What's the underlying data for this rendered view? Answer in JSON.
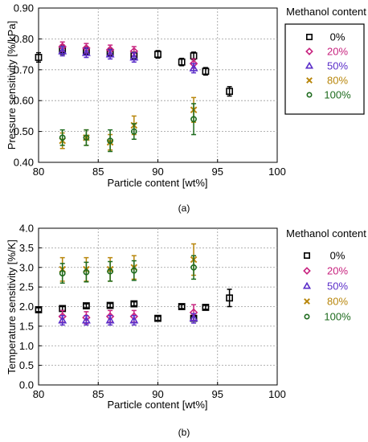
{
  "panels": [
    {
      "label": "(a)",
      "legend_title": "Methanol content",
      "chart_data": {
        "type": "scatter",
        "xlabel": "Particle content [wt%]",
        "ylabel": "Pressure sensitivity [%/kPa]",
        "xlim": [
          80,
          100
        ],
        "ylim": [
          0.4,
          0.9
        ],
        "xticks": [
          80,
          85,
          90,
          95,
          100
        ],
        "yticks": [
          0.4,
          0.5,
          0.6,
          0.7,
          0.8,
          0.9
        ],
        "ytick_labels": [
          "0.40",
          "0.50",
          "0.60",
          "0.70",
          "0.80",
          "0.90"
        ],
        "grid": true,
        "legend_position": "right",
        "series": [
          {
            "name": "0%",
            "color": "#000000",
            "marker": "square",
            "x": [
              80,
              82,
              84,
              86,
              88,
              90,
              92,
              93,
              94,
              96
            ],
            "y": [
              0.74,
              0.765,
              0.76,
              0.755,
              0.745,
              0.75,
              0.725,
              0.745,
              0.695,
              0.63
            ],
            "err": [
              0.015,
              0.015,
              0.012,
              0.012,
              0.012,
              0.012,
              0.012,
              0.012,
              0.012,
              0.015
            ]
          },
          {
            "name": "20%",
            "color": "#c8237f",
            "marker": "diamond",
            "x": [
              82,
              84,
              86,
              88,
              93
            ],
            "y": [
              0.775,
              0.77,
              0.765,
              0.76,
              0.72
            ],
            "err": [
              0.015,
              0.015,
              0.015,
              0.015,
              0.015
            ]
          },
          {
            "name": "50%",
            "color": "#5b2fc9",
            "marker": "triangle",
            "x": [
              82,
              84,
              86,
              88,
              93
            ],
            "y": [
              0.76,
              0.755,
              0.75,
              0.74,
              0.705
            ],
            "err": [
              0.015,
              0.015,
              0.015,
              0.015,
              0.015
            ]
          },
          {
            "name": "80%",
            "color": "#b8860b",
            "marker": "cross",
            "x": [
              82,
              84,
              86,
              88,
              93
            ],
            "y": [
              0.47,
              0.48,
              0.465,
              0.52,
              0.57
            ],
            "err": [
              0.025,
              0.025,
              0.025,
              0.03,
              0.04
            ]
          },
          {
            "name": "100%",
            "color": "#1e6b1e",
            "marker": "circle",
            "x": [
              82,
              84,
              86,
              88,
              93
            ],
            "y": [
              0.48,
              0.48,
              0.47,
              0.5,
              0.54
            ],
            "err": [
              0.025,
              0.025,
              0.035,
              0.025,
              0.05
            ]
          }
        ]
      }
    },
    {
      "label": "(b)",
      "legend_title": "Methanol content",
      "chart_data": {
        "type": "scatter",
        "xlabel": "Particle content [wt%]",
        "ylabel": "Temperature sensitivity [%/K]",
        "xlim": [
          80,
          100
        ],
        "ylim": [
          0.0,
          4.0
        ],
        "xticks": [
          80,
          85,
          90,
          95,
          100
        ],
        "yticks": [
          0.0,
          0.5,
          1.0,
          1.5,
          2.0,
          2.5,
          3.0,
          3.5,
          4.0
        ],
        "ytick_labels": [
          "0.0",
          "0.5",
          "1.0",
          "1.5",
          "2.0",
          "2.5",
          "3.0",
          "3.5",
          "4.0"
        ],
        "grid": true,
        "legend_position": "right",
        "series": [
          {
            "name": "0%",
            "color": "#000000",
            "marker": "square",
            "x": [
              80,
              82,
              84,
              86,
              88,
              90,
              92,
              93,
              94,
              96
            ],
            "y": [
              1.92,
              1.95,
              2.02,
              2.03,
              2.07,
              1.7,
              2.0,
              1.7,
              1.98,
              2.22
            ],
            "err": [
              0.05,
              0.05,
              0.05,
              0.05,
              0.05,
              0.05,
              0.05,
              0.05,
              0.05,
              0.22
            ]
          },
          {
            "name": "20%",
            "color": "#c8237f",
            "marker": "diamond",
            "x": [
              82,
              84,
              86,
              88,
              93
            ],
            "y": [
              1.75,
              1.72,
              1.75,
              1.75,
              1.85
            ],
            "err": [
              0.15,
              0.15,
              0.15,
              0.15,
              0.2
            ]
          },
          {
            "name": "50%",
            "color": "#5b2fc9",
            "marker": "triangle",
            "x": [
              82,
              84,
              86,
              88,
              93
            ],
            "y": [
              1.65,
              1.65,
              1.65,
              1.65,
              1.7
            ],
            "err": [
              0.12,
              0.12,
              0.12,
              0.12,
              0.12
            ]
          },
          {
            "name": "80%",
            "color": "#b8860b",
            "marker": "cross",
            "x": [
              82,
              84,
              86,
              88,
              93
            ],
            "y": [
              2.95,
              2.95,
              2.95,
              3.0,
              3.2
            ],
            "err": [
              0.3,
              0.3,
              0.3,
              0.3,
              0.4
            ]
          },
          {
            "name": "100%",
            "color": "#1e6b1e",
            "marker": "circle",
            "x": [
              82,
              84,
              86,
              88,
              93
            ],
            "y": [
              2.85,
              2.88,
              2.9,
              2.92,
              3.0
            ],
            "err": [
              0.25,
              0.25,
              0.25,
              0.25,
              0.3
            ]
          }
        ]
      }
    }
  ]
}
